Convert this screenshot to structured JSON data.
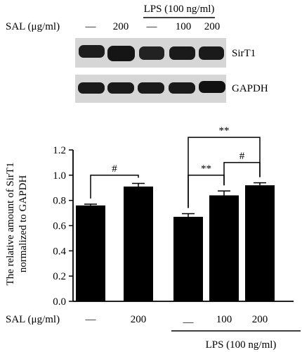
{
  "blot": {
    "lps_header": "LPS (100 ng/ml)",
    "sal_label": "SAL (μg/ml)",
    "sal_values": [
      "—",
      "200",
      "—",
      "100",
      "200"
    ],
    "bands": [
      "SirT1",
      "GAPDH"
    ],
    "colors": {
      "membrane": "#d6d6d6",
      "band": "#1a1a1a"
    }
  },
  "chart_data": {
    "type": "bar",
    "ylabel_line1": "The relative amount of SirT1",
    "ylabel_line2": "normalized to GAPDH",
    "ylim": [
      0,
      1.2
    ],
    "yticks": [
      "0.0",
      "0.2",
      "0.4",
      "0.6",
      "0.8",
      "1.0",
      "1.2"
    ],
    "categories": [
      "—",
      "200",
      "—",
      "100",
      "200"
    ],
    "values": [
      0.76,
      0.91,
      0.67,
      0.84,
      0.92
    ],
    "errors": [
      0.01,
      0.025,
      0.025,
      0.035,
      0.02
    ],
    "bar_color": "#000000",
    "x_row_label": "SAL (μg/ml)",
    "group_label": "LPS (100 ng/ml)",
    "significance": [
      {
        "from": 0,
        "to": 1,
        "label": "#",
        "level": 1.0
      },
      {
        "from": 2,
        "to": 3,
        "label": "**",
        "level": 1.0
      },
      {
        "from": 3,
        "to": 4,
        "label": "#",
        "level": 1.1
      },
      {
        "from": 2,
        "to": 4,
        "label": "**",
        "level": 1.3
      }
    ]
  }
}
